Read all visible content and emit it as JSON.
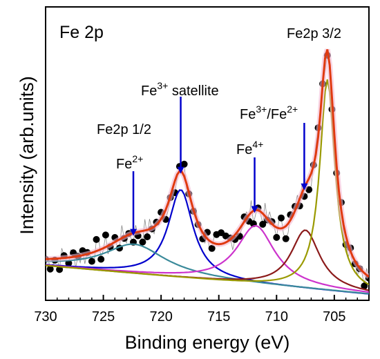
{
  "chart_data": {
    "type": "line",
    "title": "",
    "panel_label": "Fe 2p",
    "xlabel": "Binding energy (eV)",
    "ylabel": "Intensity (arb.units)",
    "xlim": [
      730,
      702
    ],
    "x_reversed": true,
    "ylim": [
      0,
      1
    ],
    "grid": false,
    "legend": "none",
    "x_ticks": [
      730,
      725,
      720,
      715,
      710,
      705
    ],
    "baseline": {
      "slope_per_eV": 0.0035,
      "at_702": 0.02
    },
    "series": [
      {
        "color": "#0000cc",
        "peak_center": 718.3,
        "fwhm": 2.6,
        "amplitude": 0.3
      },
      {
        "color": "#3a8a9a",
        "peak_center": 722.3,
        "fwhm": 6.5,
        "amplitude": 0.1
      },
      {
        "color": "#cc33cc",
        "peak_center": 711.8,
        "fwhm": 4.0,
        "amplitude": 0.2
      },
      {
        "color": "#8b1a1a",
        "peak_center": 707.5,
        "fwhm": 3.0,
        "amplitude": 0.2
      },
      {
        "color": "#9a9a00",
        "peak_center": 705.6,
        "fwhm": 1.6,
        "amplitude": 0.72
      },
      {
        "color": "#e03a10",
        "role": "envelope"
      }
    ],
    "scatter": {
      "color": "#000000",
      "noise": 0.045
    },
    "annotations": [
      {
        "text": "Fe2p 3/2"
      },
      {
        "text": "Fe2p 1/2"
      },
      {
        "text": "Fe",
        "sup": "3+",
        "suffix": " satellite",
        "arrow_x": 718.3
      },
      {
        "text": "Fe",
        "sup": "2+",
        "arrow_x": 722.4
      },
      {
        "text": "Fe",
        "sup": "4+",
        "arrow_x": 711.9
      },
      {
        "text": "Fe",
        "sup": "3+",
        "suffix": "/Fe",
        "sup2": "2+",
        "arrow_x": 707.6
      }
    ]
  }
}
